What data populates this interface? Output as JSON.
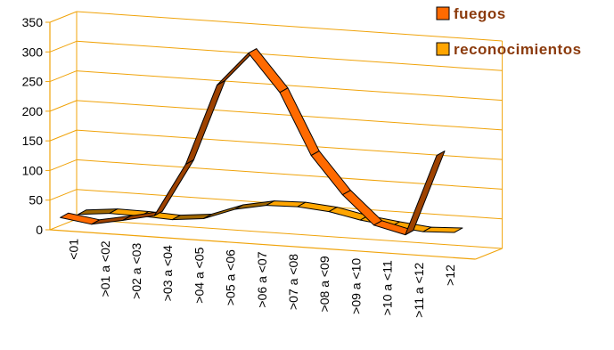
{
  "chart_data": {
    "type": "line",
    "style": "3d-ribbon",
    "categories": [
      "<01",
      ">01 a <02",
      ">02 a <03",
      ">03 a <04",
      ">04 a <05",
      ">05 a <06",
      ">06 a <07",
      ">07 a <08",
      ">08 a <09",
      ">09 a <10",
      ">10 a <11",
      ">11 a <12",
      ">12"
    ],
    "series": [
      {
        "name": "fuegos",
        "color": "#ff6a00",
        "values": [
          15,
          5,
          13,
          22,
          110,
          245,
          300,
          235,
          130,
          65,
          15,
          0,
          135
        ]
      },
      {
        "name": "reconocimientos",
        "color": "#ffa500",
        "values": [
          15,
          18,
          15,
          10,
          13,
          30,
          38,
          37,
          30,
          17,
          8,
          0,
          0
        ]
      }
    ],
    "ylim": [
      0,
      350
    ],
    "yticks": [
      "0",
      "50",
      "100",
      "150",
      "200",
      "250",
      "300",
      "350"
    ],
    "grid": true,
    "legend": "top-right",
    "xlabel": "",
    "ylabel": "",
    "title": ""
  }
}
